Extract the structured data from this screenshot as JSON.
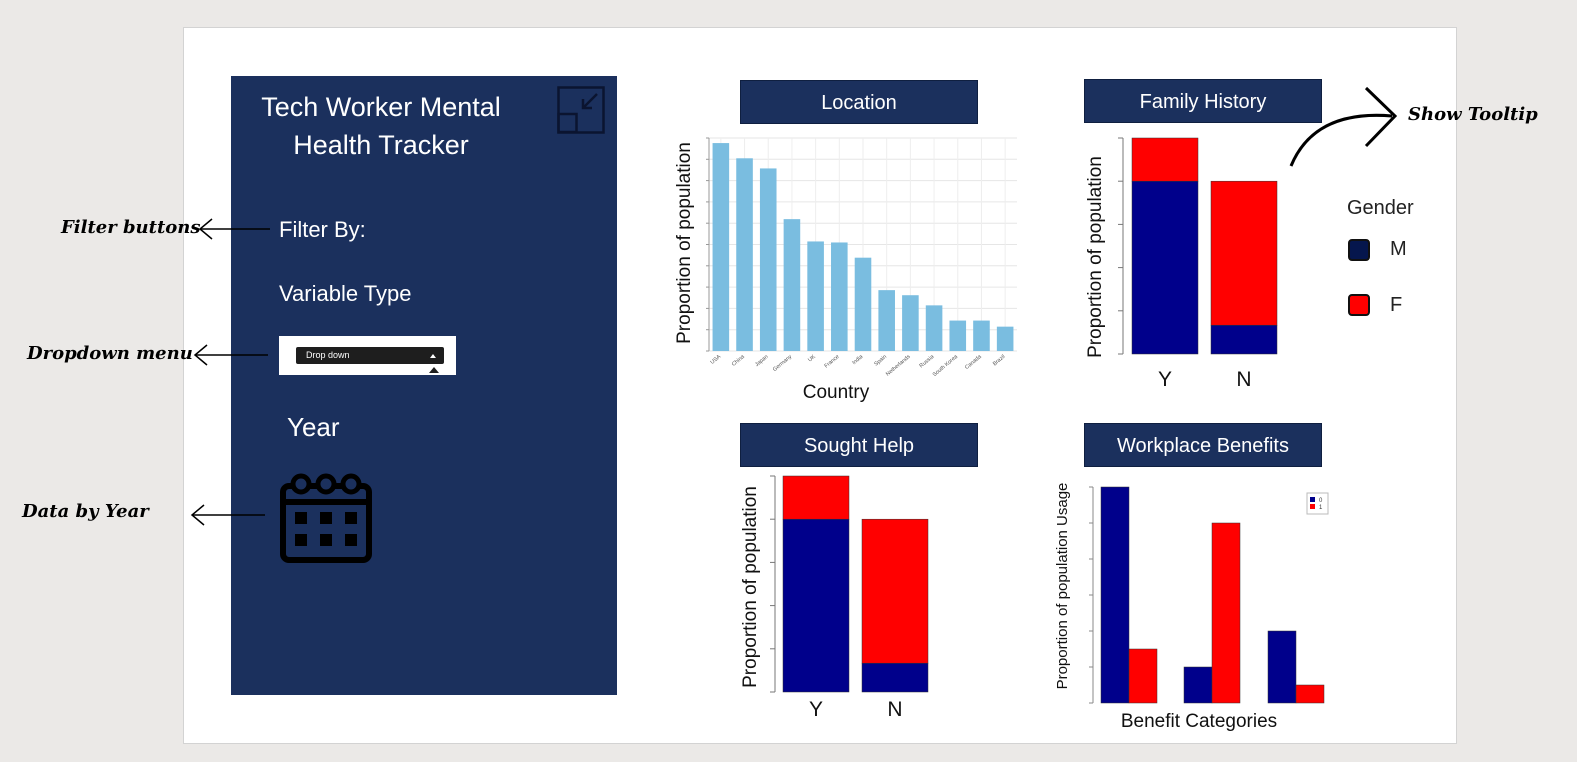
{
  "app": {
    "title": "Tech Worker Mental Health Tracker"
  },
  "sidebar": {
    "filter_label": "Filter By:",
    "variable_type_label": "Variable Type",
    "dropdown_value": "Drop down",
    "year_label": "Year",
    "calendar_icon": "calendar-icon",
    "collapse_icon": "collapse-icon"
  },
  "annotations": {
    "filter_buttons": "Filter buttons",
    "dropdown_menu": "Dropdown menu",
    "data_by_year": "Data by Year",
    "show_tooltip": "Show Tooltip"
  },
  "legend": {
    "title": "Gender",
    "items": [
      {
        "label": "M",
        "color": "#05164d"
      },
      {
        "label": "F",
        "color": "#ff0000"
      }
    ]
  },
  "colors": {
    "navy": "#1b305d",
    "bar_blue": "#7abde0",
    "male": "#00008b",
    "female": "#ff0000"
  },
  "chart_data": [
    {
      "type": "bar",
      "title": "Location",
      "xlabel": "Country",
      "ylabel": "Proportion of population",
      "categories": [
        "USA",
        "China",
        "Japan",
        "Germany",
        "UK",
        "France",
        "India",
        "Spain",
        "Netherlands",
        "Russia",
        "South Korea",
        "Canada",
        "Brazil"
      ],
      "values": [
        0.205,
        0.19,
        0.18,
        0.13,
        0.108,
        0.107,
        0.092,
        0.06,
        0.055,
        0.045,
        0.03,
        0.03,
        0.024
      ],
      "ylim": [
        0,
        0.21
      ],
      "grid": true
    },
    {
      "type": "bar",
      "stacked": true,
      "title": "Family History",
      "ylabel": "Proportion of population",
      "categories": [
        "Y",
        "N"
      ],
      "series": [
        {
          "name": "M",
          "values": [
            0.6,
            0.1
          ]
        },
        {
          "name": "F",
          "values": [
            0.15,
            0.5
          ]
        }
      ],
      "ylim": [
        0,
        0.75
      ]
    },
    {
      "type": "bar",
      "stacked": true,
      "title": "Sought Help",
      "ylabel": "Proportion of population",
      "categories": [
        "Y",
        "N"
      ],
      "series": [
        {
          "name": "M",
          "values": [
            0.6,
            0.1
          ]
        },
        {
          "name": "F",
          "values": [
            0.15,
            0.5
          ]
        }
      ],
      "ylim": [
        0,
        0.75
      ]
    },
    {
      "type": "bar",
      "title": "Workplace Benefits",
      "xlabel": "Benefit Categories",
      "ylabel": "Proportion of population Usage",
      "categories": [
        "",
        "",
        ""
      ],
      "series": [
        {
          "name": "0",
          "values": [
            0.6,
            0.1,
            0.2
          ]
        },
        {
          "name": "1",
          "values": [
            0.15,
            0.5,
            0.05
          ]
        }
      ],
      "ylim": [
        0,
        0.6
      ],
      "legend": "top-right"
    }
  ]
}
